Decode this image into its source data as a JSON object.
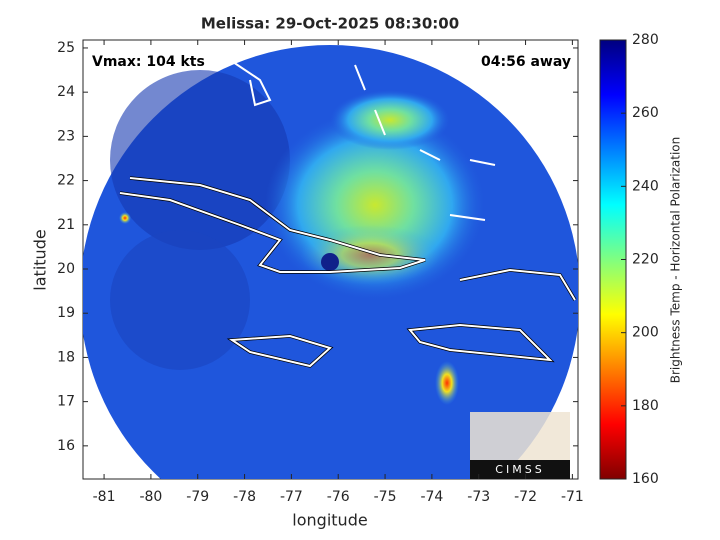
{
  "chart_data": {
    "type": "map",
    "title": "Melissa: 29-Oct-2025 08:30:00",
    "annotations": [
      "Vmax: 104 kts",
      "04:56 away"
    ],
    "x_label": "longitude",
    "y_label": "latitude",
    "xlim": [
      -81.45,
      -70.88
    ],
    "xticks": [
      -81,
      -80,
      -79,
      -78,
      -77,
      -76,
      -75,
      -74,
      -73,
      -72,
      -71
    ],
    "ylim": [
      15.25,
      25.18
    ],
    "yticks": [
      16,
      17,
      18,
      19,
      20,
      21,
      22,
      23,
      24,
      25
    ],
    "colorbar": {
      "label": "Brightness Temp - Horizontal Polarization",
      "colormap": "jet",
      "clim": [
        160,
        280
      ],
      "ticks": [
        160,
        180,
        200,
        220,
        240,
        260,
        280
      ]
    },
    "logo": "CIMSS"
  }
}
